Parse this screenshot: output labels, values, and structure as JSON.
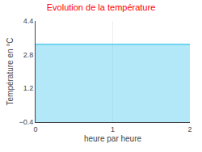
{
  "chart_data": {
    "type": "area",
    "title": "Evolution de la température",
    "xlabel": "heure par heure",
    "ylabel": "Température en °C",
    "x": [
      0,
      2
    ],
    "series": [
      {
        "color": "#55ccee",
        "values": [
          3.3,
          3.3
        ]
      }
    ],
    "xlim": [
      0,
      2
    ],
    "xticks": [
      0,
      1,
      2
    ],
    "ylim": [
      -0.4,
      4.4
    ],
    "yticks": [
      -0.4,
      1.2,
      2.8,
      4.4
    ],
    "grid": "x"
  }
}
